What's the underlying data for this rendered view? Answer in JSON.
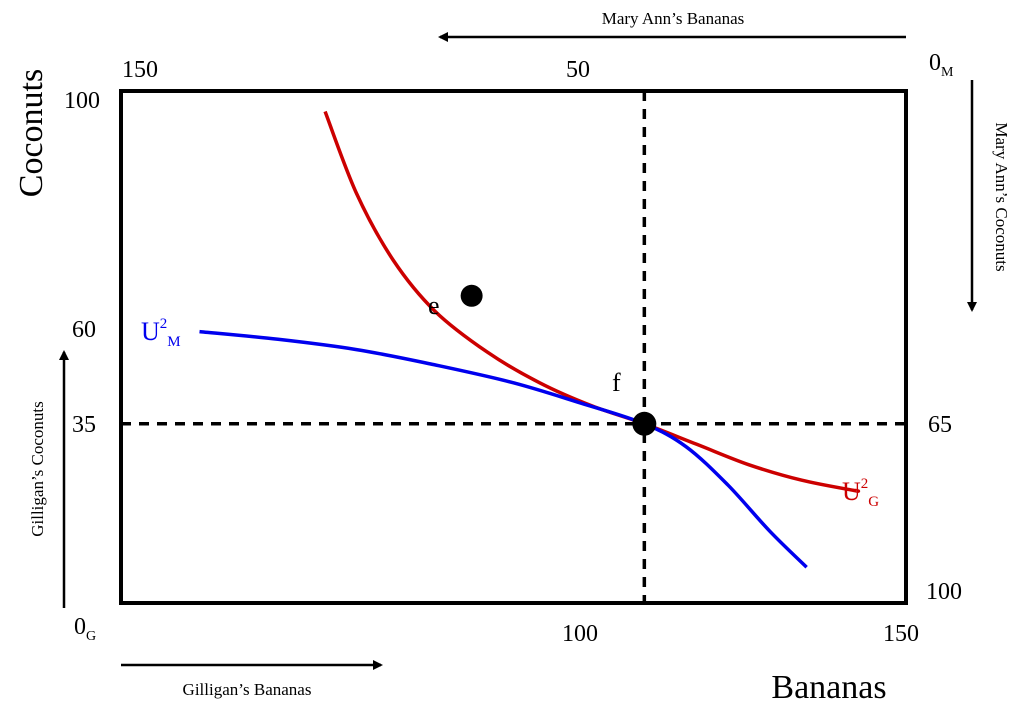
{
  "chart_data": {
    "type": "edgeworth-box",
    "ylabel": "Coconuts",
    "xlabel": "Bananas",
    "top_axis_title": "Mary Ann’s Bananas",
    "right_axis_title": "Mary Ann’s Coconuts",
    "left_axis_title": "Gilligan’s Coconuts",
    "bottom_axis_title": "Gilligan’s Bananas",
    "origin_gilligan": {
      "main": "0",
      "sub": "G"
    },
    "origin_maryann": {
      "main": "0",
      "sub": "M"
    },
    "box": {
      "bananas": 150,
      "coconuts": 100
    },
    "bottom_ticks": [
      "100",
      "150"
    ],
    "top_ticks": [
      "150",
      "50"
    ],
    "left_ticks": [
      "100",
      "60",
      "35"
    ],
    "right_ticks": [
      "65",
      "100"
    ],
    "dashed_lines": {
      "x": 100,
      "y": 35
    },
    "points": [
      {
        "label": "e",
        "x": 67,
        "y": 60
      },
      {
        "label": "f",
        "x": 100,
        "y": 35
      }
    ],
    "curves": [
      {
        "main": "U",
        "sup": "2",
        "sub": "G",
        "color": "#cc0000",
        "points": [
          [
            39,
            96
          ],
          [
            45,
            80
          ],
          [
            52,
            67
          ],
          [
            60,
            57
          ],
          [
            70,
            49
          ],
          [
            80,
            43
          ],
          [
            90,
            38.5
          ],
          [
            100,
            35
          ],
          [
            110,
            31
          ],
          [
            120,
            27
          ],
          [
            130,
            24
          ],
          [
            140,
            22
          ],
          [
            140.5,
            22
          ]
        ]
      },
      {
        "main": "U",
        "sup": "2",
        "sub": "M",
        "color": "#0000ee",
        "points": [
          [
            15,
            53
          ],
          [
            30,
            51.5
          ],
          [
            45,
            49.5
          ],
          [
            60,
            46.5
          ],
          [
            75,
            43
          ],
          [
            88,
            39
          ],
          [
            100,
            35
          ],
          [
            108,
            30.5
          ],
          [
            116,
            23
          ],
          [
            124,
            14
          ],
          [
            131,
            7
          ]
        ]
      }
    ]
  }
}
